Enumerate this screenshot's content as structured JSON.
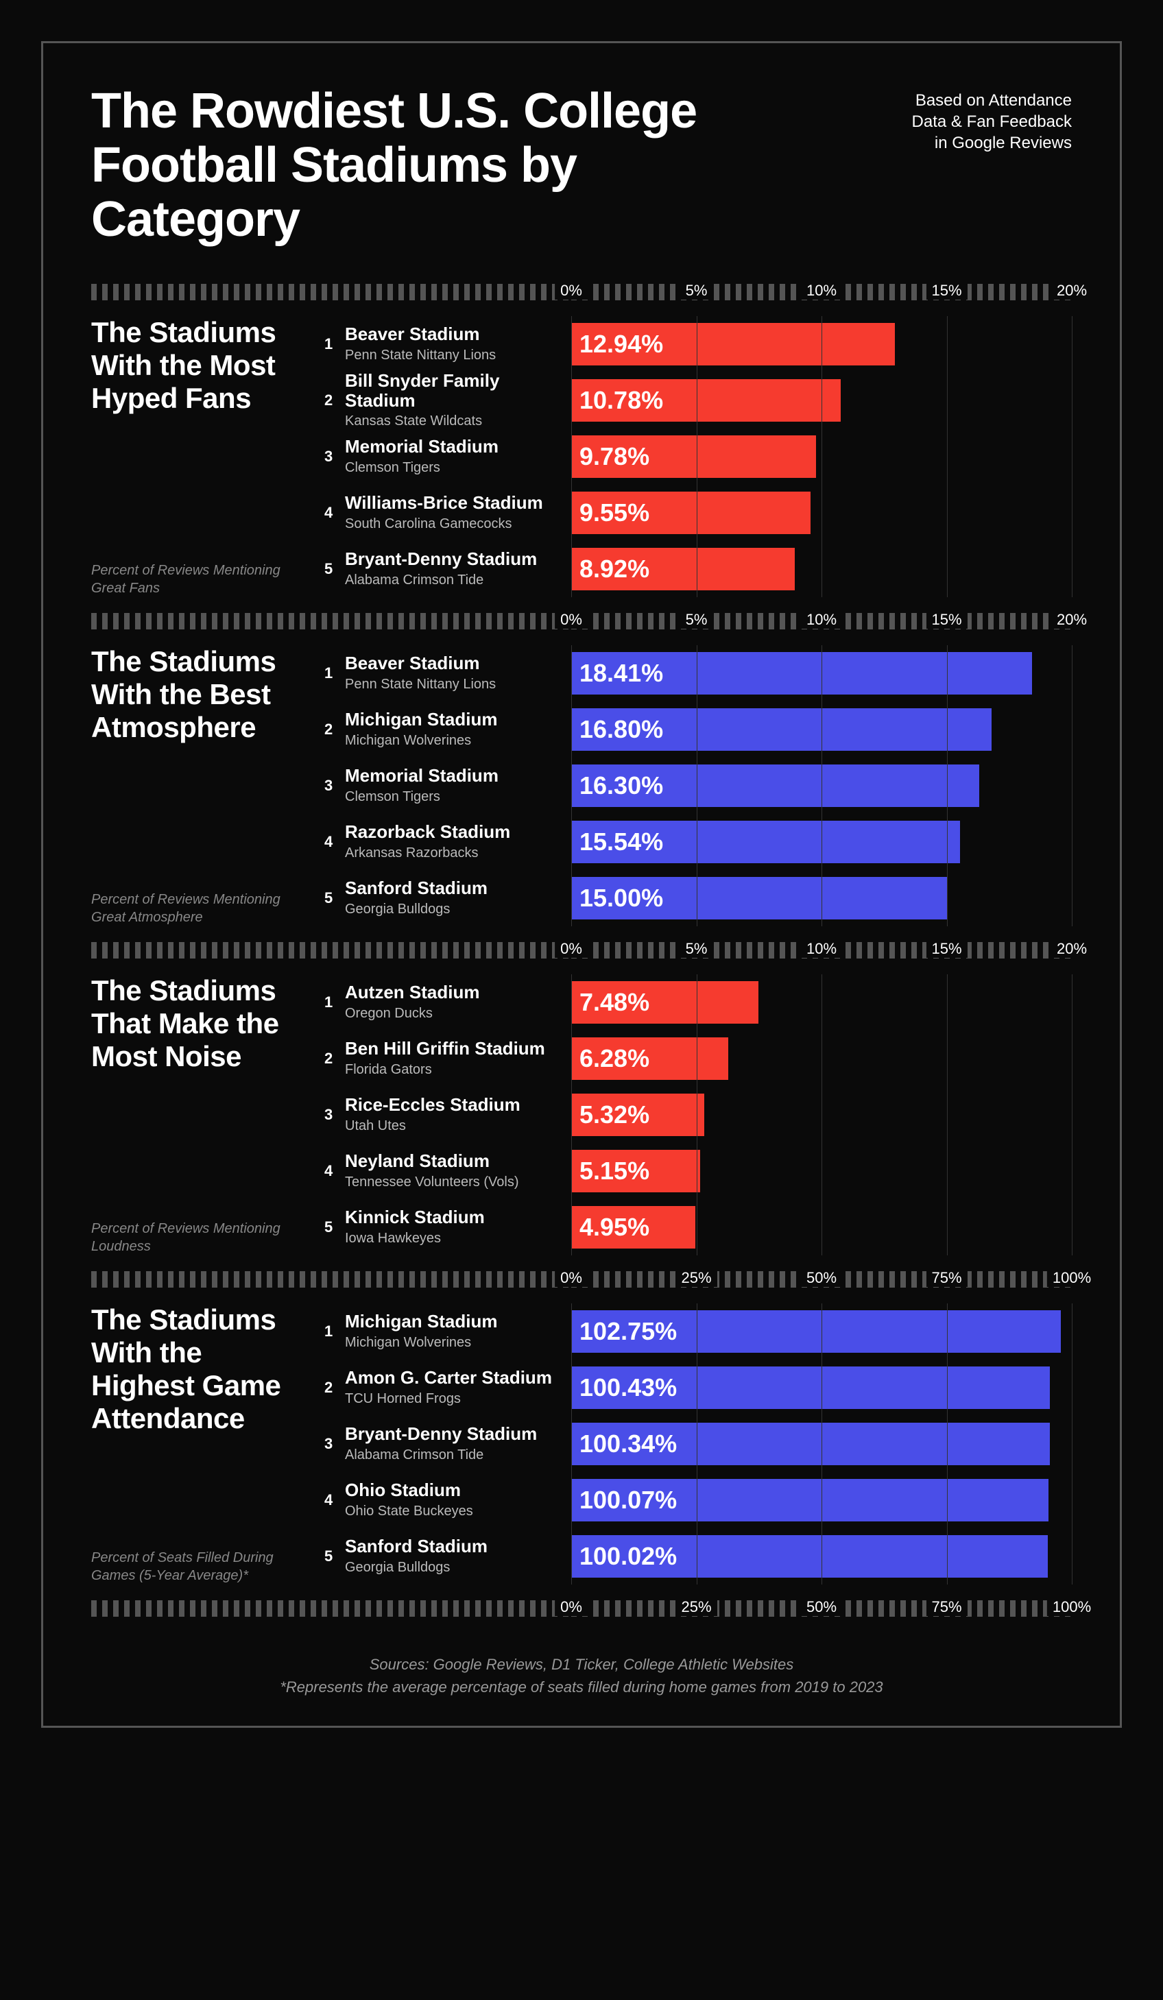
{
  "title": "The Rowdiest U.S. College Football Stadiums by Category",
  "subtitle_l1": "Based on Attendance",
  "subtitle_l2": "Data & Fan Feedback",
  "subtitle_l3": "in Google Reviews",
  "colors": {
    "background": "#0a0a0a",
    "border": "#555555",
    "text": "#ffffff",
    "muted": "#888888",
    "grid": "#333333",
    "red": "#f63b2f",
    "blue": "#4a4ee8"
  },
  "sections": [
    {
      "title": "The Stadiums With the Most Hyped Fans",
      "caption": "Percent of Reviews Mentioning Great Fans",
      "color": "red",
      "xmax": 20,
      "ticks": [
        "0%",
        "5%",
        "10%",
        "15%",
        "20%"
      ],
      "items": [
        {
          "rank": "1",
          "stadium": "Beaver Stadium",
          "team": "Penn State Nittany Lions",
          "value": 12.94,
          "label": "12.94%"
        },
        {
          "rank": "2",
          "stadium": "Bill Snyder Family Stadium",
          "team": "Kansas State Wildcats",
          "value": 10.78,
          "label": "10.78%"
        },
        {
          "rank": "3",
          "stadium": "Memorial Stadium",
          "team": "Clemson Tigers",
          "value": 9.78,
          "label": "9.78%"
        },
        {
          "rank": "4",
          "stadium": "Williams-Brice Stadium",
          "team": "South Carolina Gamecocks",
          "value": 9.55,
          "label": "9.55%"
        },
        {
          "rank": "5",
          "stadium": "Bryant-Denny Stadium",
          "team": "Alabama Crimson Tide",
          "value": 8.92,
          "label": "8.92%"
        }
      ]
    },
    {
      "title": "The Stadiums With the Best Atmosphere",
      "caption": "Percent of Reviews Mentioning Great Atmosphere",
      "color": "blue",
      "xmax": 20,
      "ticks": [
        "0%",
        "5%",
        "10%",
        "15%",
        "20%"
      ],
      "items": [
        {
          "rank": "1",
          "stadium": "Beaver Stadium",
          "team": "Penn State Nittany Lions",
          "value": 18.41,
          "label": "18.41%"
        },
        {
          "rank": "2",
          "stadium": "Michigan Stadium",
          "team": "Michigan Wolverines",
          "value": 16.8,
          "label": "16.80%"
        },
        {
          "rank": "3",
          "stadium": "Memorial Stadium",
          "team": "Clemson Tigers",
          "value": 16.3,
          "label": "16.30%"
        },
        {
          "rank": "4",
          "stadium": "Razorback Stadium",
          "team": "Arkansas Razorbacks",
          "value": 15.54,
          "label": "15.54%"
        },
        {
          "rank": "5",
          "stadium": "Sanford Stadium",
          "team": "Georgia Bulldogs",
          "value": 15.0,
          "label": "15.00%"
        }
      ]
    },
    {
      "title": "The Stadiums That Make the Most Noise",
      "caption": "Percent of Reviews Mentioning Loudness",
      "color": "red",
      "xmax": 20,
      "ticks": [
        "0%",
        "5%",
        "10%",
        "15%",
        "20%"
      ],
      "items": [
        {
          "rank": "1",
          "stadium": "Autzen Stadium",
          "team": "Oregon Ducks",
          "value": 7.48,
          "label": "7.48%"
        },
        {
          "rank": "2",
          "stadium": "Ben Hill Griffin Stadium",
          "team": "Florida Gators",
          "value": 6.28,
          "label": "6.28%"
        },
        {
          "rank": "3",
          "stadium": "Rice-Eccles Stadium",
          "team": "Utah Utes",
          "value": 5.32,
          "label": "5.32%"
        },
        {
          "rank": "4",
          "stadium": "Neyland Stadium",
          "team": "Tennessee Volunteers (Vols)",
          "value": 5.15,
          "label": "5.15%"
        },
        {
          "rank": "5",
          "stadium": "Kinnick Stadium",
          "team": "Iowa Hawkeyes",
          "value": 4.95,
          "label": "4.95%"
        }
      ]
    },
    {
      "title": "The Stadiums With the Highest Game Attendance",
      "caption": "Percent of Seats Filled During Games (5-Year Average)*",
      "color": "blue",
      "xmax": 105,
      "ticks": [
        "0%",
        "25%",
        "50%",
        "75%",
        "100%"
      ],
      "items": [
        {
          "rank": "1",
          "stadium": "Michigan Stadium",
          "team": "Michigan Wolverines",
          "value": 102.75,
          "label": "102.75%"
        },
        {
          "rank": "2",
          "stadium": "Amon G. Carter Stadium",
          "team": "TCU Horned Frogs",
          "value": 100.43,
          "label": "100.43%"
        },
        {
          "rank": "3",
          "stadium": "Bryant-Denny Stadium",
          "team": "Alabama Crimson Tide",
          "value": 100.34,
          "label": "100.34%"
        },
        {
          "rank": "4",
          "stadium": "Ohio Stadium",
          "team": "Ohio State Buckeyes",
          "value": 100.07,
          "label": "100.07%"
        },
        {
          "rank": "5",
          "stadium": "Sanford Stadium",
          "team": "Georgia Bulldogs",
          "value": 100.02,
          "label": "100.02%"
        }
      ]
    }
  ],
  "footer_l1": "Sources: Google Reviews, D1 Ticker, College Athletic Websites",
  "footer_l2": "*Represents the average percentage of seats filled during home games from 2019 to 2023"
}
